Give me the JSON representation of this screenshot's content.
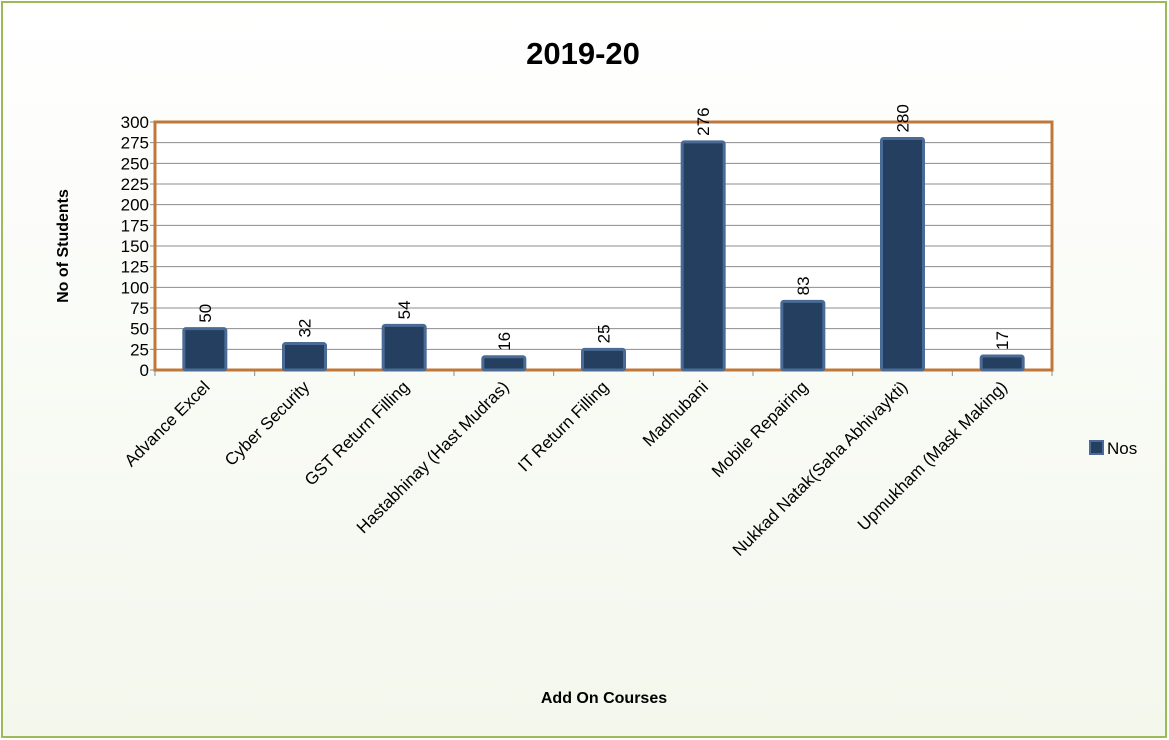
{
  "chart_data": {
    "type": "bar",
    "title": "2019-20",
    "x_label": "Add On Courses",
    "y_label": "No of Students",
    "categories": [
      "Advance Excel",
      "Cyber Security",
      "GST Return Filling",
      "Hastabhinay (Hast Mudras)",
      "IT Return Filling",
      "Madhubani",
      "Mobile Repairing",
      "Nukkad Natak(Saha Abhivaykti)",
      "Upmukham (Mask Making)"
    ],
    "series": [
      {
        "name": "Nos",
        "color": "#243f60",
        "values": [
          50,
          32,
          54,
          16,
          25,
          276,
          83,
          280,
          17
        ]
      }
    ],
    "ylim": [
      0,
      300
    ],
    "yticks": [
      0,
      25,
      50,
      75,
      100,
      125,
      150,
      175,
      200,
      225,
      250,
      275,
      300
    ],
    "grid": true,
    "legend": "right"
  }
}
